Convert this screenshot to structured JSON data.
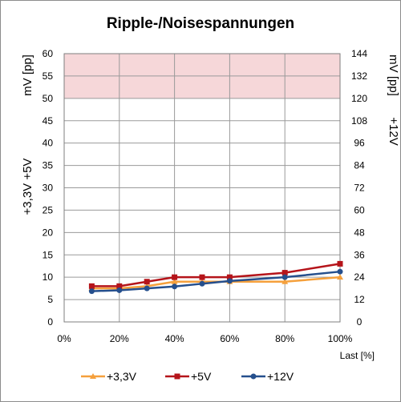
{
  "chart_data": {
    "type": "line",
    "title": "Ripple-/Noisespannungen",
    "xlabel": "Last [%]",
    "ylabel_left": "+3,3V  +5V",
    "ylabel_left_unit": "mV [pp]",
    "ylabel_right": "+12V",
    "ylabel_right_unit": "mV [pp]",
    "x": [
      10,
      20,
      30,
      40,
      50,
      60,
      80,
      100
    ],
    "x_ticks": [
      "0%",
      "20%",
      "40%",
      "60%",
      "80%",
      "100%"
    ],
    "xlim": [
      0,
      100
    ],
    "ylim_left": [
      0,
      60
    ],
    "ylim_right": [
      0,
      144
    ],
    "y_ticks_left": [
      "0",
      "5",
      "10",
      "15",
      "20",
      "25",
      "30",
      "35",
      "40",
      "45",
      "50",
      "55",
      "60"
    ],
    "y_ticks_right": [
      "0",
      "12",
      "24",
      "36",
      "48",
      "60",
      "72",
      "84",
      "96",
      "108",
      "120",
      "132",
      "144"
    ],
    "limit_band_left": [
      50,
      60
    ],
    "grid": true,
    "legend_position": "bottom",
    "series": [
      {
        "name": "+3,3V",
        "axis": "left",
        "color": "#f5a03c",
        "marker": "triangle",
        "values": [
          7.5,
          7.5,
          8.0,
          9.0,
          9.0,
          9.0,
          9.0,
          10.0
        ]
      },
      {
        "name": "+5V",
        "axis": "left",
        "color": "#b5141a",
        "marker": "square",
        "values": [
          8.0,
          8.0,
          9.0,
          10.0,
          10.0,
          10.0,
          11.0,
          13.0
        ]
      },
      {
        "name": "+12V",
        "axis": "right",
        "color": "#254f8d",
        "marker": "circle",
        "values": [
          16.5,
          17.0,
          18.0,
          19.0,
          20.5,
          22.0,
          24.0,
          27.0
        ]
      }
    ],
    "colors": {
      "band": "#f6d7d9",
      "grid": "#9a9a9a",
      "axis": "#7f7f7f"
    }
  }
}
